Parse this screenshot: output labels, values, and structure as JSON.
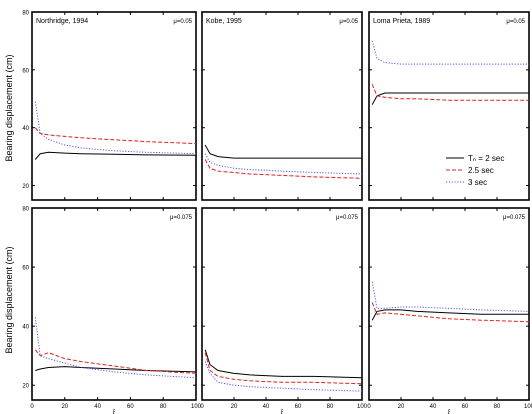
{
  "figure": {
    "ylabel": "Bearing displacement (cm)",
    "xlabel": "ξ"
  },
  "legend": {
    "placement": "lower-right of top-right panel",
    "items": [
      {
        "label": "Tₙ = 2 sec",
        "color": "#000000",
        "dash": "solid"
      },
      {
        "label": "2.5 sec",
        "color": "#dd2222",
        "dash": "dashed"
      },
      {
        "label": "3 sec",
        "color": "#5555ee",
        "dash": "dotted"
      }
    ]
  },
  "chart_data": [
    {
      "type": "line",
      "title": "Northridge, 1994",
      "annotation": "μ=0.05",
      "xlim": [
        0,
        100
      ],
      "ylim": [
        15,
        80
      ],
      "xticks": [
        0,
        20,
        40,
        60,
        80,
        100
      ],
      "yticks": [
        20,
        40,
        60,
        80
      ],
      "show_xticks": false,
      "show_yticks": true,
      "x": [
        2,
        5,
        10,
        20,
        30,
        50,
        70,
        100
      ],
      "series": [
        {
          "name": "Tₙ = 2 sec",
          "values": [
            29,
            31,
            31.5,
            31.2,
            31,
            30.8,
            30.6,
            30.5
          ]
        },
        {
          "name": "2.5 sec",
          "values": [
            40,
            38,
            37.5,
            37,
            36.5,
            35.8,
            35.2,
            34.5
          ]
        },
        {
          "name": "3 sec",
          "values": [
            49,
            38,
            36,
            34,
            33,
            32,
            31.5,
            31
          ]
        }
      ]
    },
    {
      "type": "line",
      "title": "Kobe, 1995",
      "annotation": "μ=0.05",
      "xlim": [
        0,
        100
      ],
      "ylim": [
        15,
        80
      ],
      "xticks": [
        0,
        20,
        40,
        60,
        80,
        100
      ],
      "yticks": [
        20,
        40,
        60,
        80
      ],
      "show_xticks": false,
      "show_yticks": false,
      "x": [
        2,
        5,
        10,
        20,
        30,
        50,
        70,
        100
      ],
      "series": [
        {
          "name": "Tₙ = 2 sec",
          "values": [
            34,
            31,
            30,
            29.5,
            29.5,
            29.5,
            29.5,
            29.5
          ]
        },
        {
          "name": "2.5 sec",
          "values": [
            29,
            26,
            25,
            24.5,
            24,
            23.5,
            23,
            22.5
          ]
        },
        {
          "name": "3 sec",
          "values": [
            31,
            28,
            27,
            26,
            25.5,
            25,
            24.5,
            24
          ]
        }
      ]
    },
    {
      "type": "line",
      "title": "Loma Prieta, 1989",
      "annotation": "μ=0.05",
      "xlim": [
        0,
        100
      ],
      "ylim": [
        15,
        80
      ],
      "xticks": [
        0,
        20,
        40,
        60,
        80,
        100
      ],
      "yticks": [
        20,
        40,
        60,
        80
      ],
      "show_xticks": false,
      "show_yticks": false,
      "x": [
        2,
        5,
        10,
        20,
        30,
        50,
        70,
        100
      ],
      "series": [
        {
          "name": "Tₙ = 2 sec",
          "values": [
            48,
            51,
            52,
            52,
            52,
            52,
            52,
            52
          ]
        },
        {
          "name": "2.5 sec",
          "values": [
            55,
            51,
            50.5,
            50,
            50,
            49.5,
            49.5,
            49.5
          ]
        },
        {
          "name": "3 sec",
          "values": [
            70,
            64,
            62.5,
            62,
            62,
            62,
            62,
            62
          ]
        }
      ]
    },
    {
      "type": "line",
      "title": "",
      "annotation": "μ=0.075",
      "xlim": [
        0,
        100
      ],
      "ylim": [
        15,
        80
      ],
      "xticks": [
        0,
        20,
        40,
        60,
        80,
        100
      ],
      "yticks": [
        20,
        40,
        60,
        80
      ],
      "show_xticks": true,
      "show_yticks": true,
      "x": [
        2,
        5,
        10,
        20,
        30,
        50,
        70,
        100
      ],
      "series": [
        {
          "name": "Tₙ = 2 sec",
          "values": [
            25,
            25.5,
            26,
            26.3,
            26,
            25.5,
            25,
            24.5
          ]
        },
        {
          "name": "2.5 sec",
          "values": [
            32,
            30,
            31,
            29,
            28,
            26.5,
            25,
            24
          ]
        },
        {
          "name": "3 sec",
          "values": [
            43,
            30,
            29,
            27.5,
            26,
            24.5,
            23.5,
            22.5
          ]
        }
      ]
    },
    {
      "type": "line",
      "title": "",
      "annotation": "μ=0.075",
      "xlim": [
        0,
        100
      ],
      "ylim": [
        15,
        80
      ],
      "xticks": [
        0,
        20,
        40,
        60,
        80,
        100
      ],
      "yticks": [
        20,
        40,
        60,
        80
      ],
      "show_xticks": true,
      "show_yticks": false,
      "x": [
        2,
        5,
        10,
        20,
        30,
        50,
        70,
        100
      ],
      "series": [
        {
          "name": "Tₙ = 2 sec",
          "values": [
            32,
            27,
            25,
            24,
            23.5,
            23,
            23,
            22.5
          ]
        },
        {
          "name": "2.5 sec",
          "values": [
            31,
            25,
            23,
            22,
            21.5,
            21,
            21,
            20.5
          ]
        },
        {
          "name": "3 sec",
          "values": [
            28,
            24,
            21,
            20,
            19.5,
            19,
            18.5,
            18
          ]
        }
      ]
    },
    {
      "type": "line",
      "title": "",
      "annotation": "μ=0.075",
      "xlim": [
        0,
        100
      ],
      "ylim": [
        15,
        80
      ],
      "xticks": [
        0,
        20,
        40,
        60,
        80,
        100
      ],
      "yticks": [
        20,
        40,
        60,
        80
      ],
      "show_xticks": true,
      "show_yticks": false,
      "x": [
        2,
        5,
        10,
        20,
        30,
        50,
        70,
        100
      ],
      "series": [
        {
          "name": "Tₙ = 2 sec",
          "values": [
            42,
            45,
            45.5,
            45.5,
            45,
            44.5,
            44,
            44
          ]
        },
        {
          "name": "2.5 sec",
          "values": [
            48,
            44,
            44.5,
            44,
            43.5,
            42.5,
            42,
            41.5
          ]
        },
        {
          "name": "3 sec",
          "values": [
            55,
            46,
            46,
            46.5,
            46.5,
            46,
            45.5,
            45
          ]
        }
      ]
    }
  ]
}
